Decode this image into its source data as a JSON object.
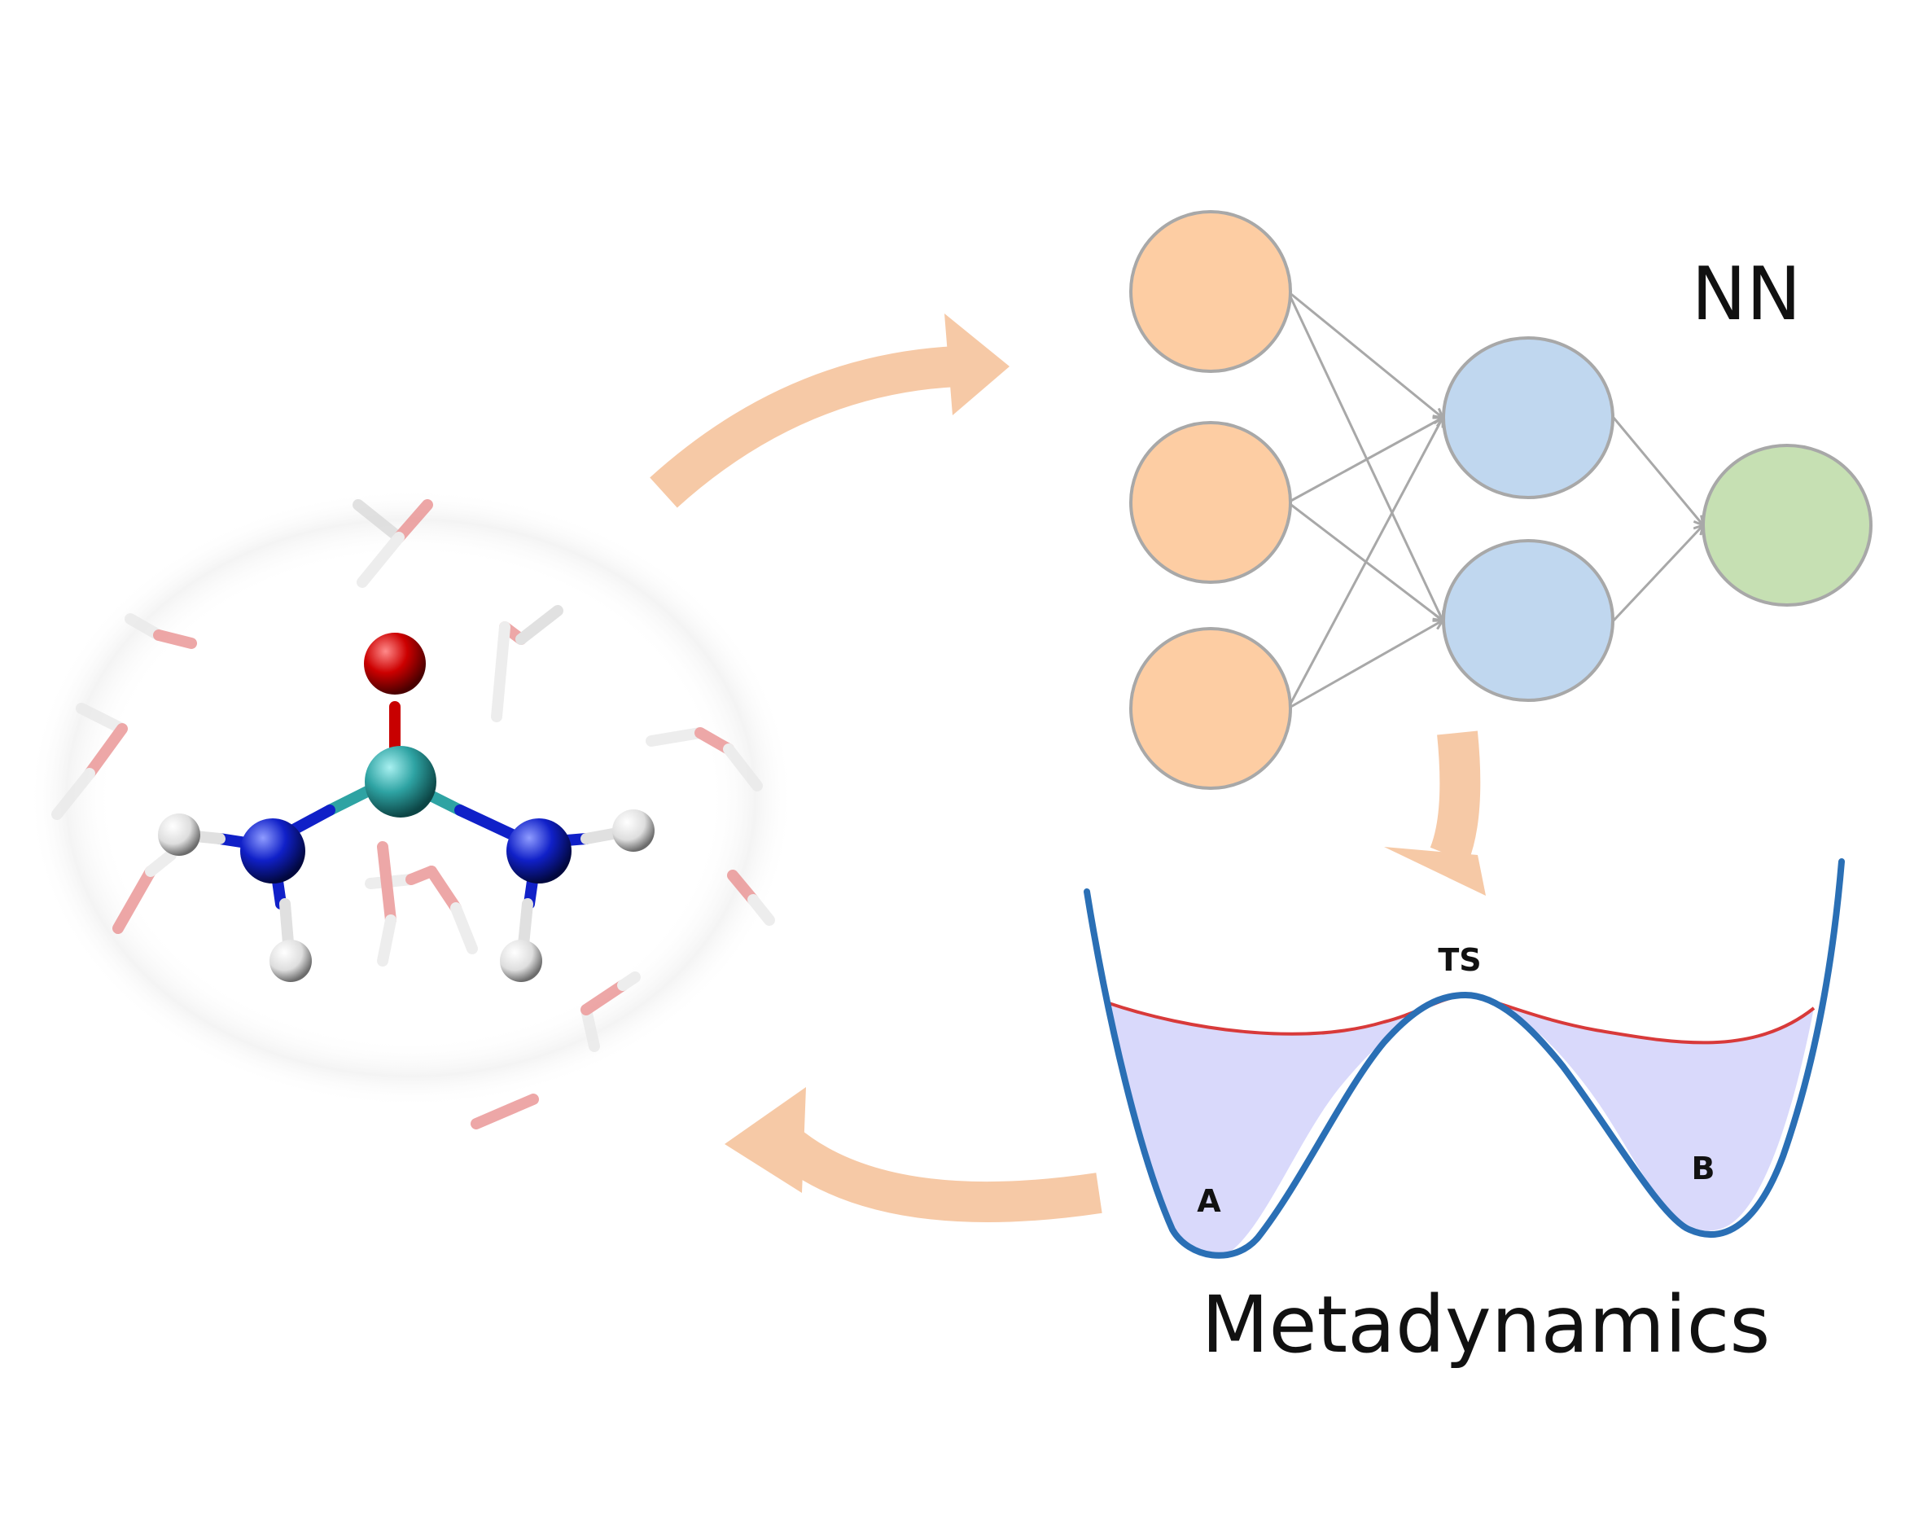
{
  "labels": {
    "nn": "NN",
    "metadynamics": "Metadynamics",
    "ts": "TS",
    "state_a": "A",
    "state_b": "B"
  },
  "colors": {
    "input_node": "#fdcda3",
    "hidden_node": "#c0d7ef",
    "output_node": "#c6e0b3",
    "node_stroke": "#a8a8a8",
    "edge": "#a8a8a8",
    "cycle_arrow": "#f6c9a6",
    "fes_curve": "#2a6fb5",
    "bias_curve": "#d83a3a",
    "fes_fill": "#d9d9fb",
    "oxygen": "#c80000",
    "carbon": "#2ea3a3",
    "nitrogen": "#1020c8",
    "hydrogen": "#e6e6e6",
    "water": "#e88a8a"
  },
  "network": {
    "layers": [
      {
        "name": "input",
        "size": 3
      },
      {
        "name": "hidden",
        "size": 2
      },
      {
        "name": "output",
        "size": 1
      }
    ]
  }
}
